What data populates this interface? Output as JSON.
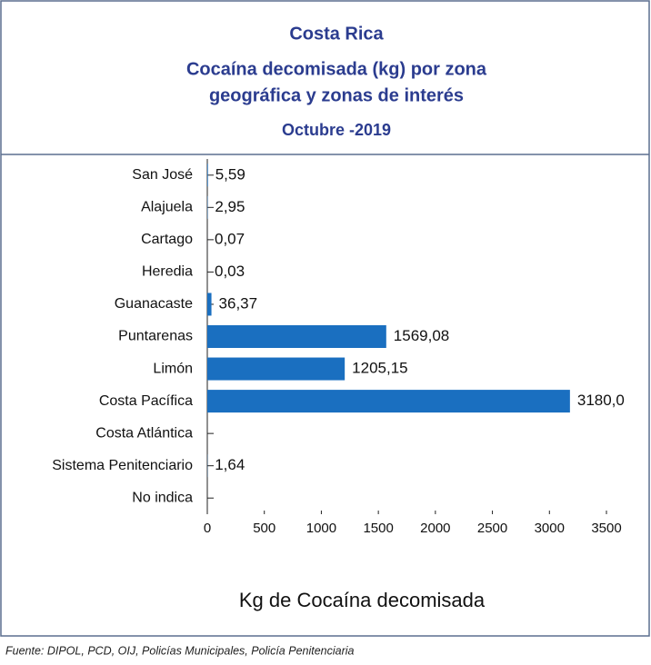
{
  "chart_data": {
    "type": "hbar",
    "title": "Costa Rica",
    "subtitle": [
      "Cocaína decomisada (kg) por zona",
      "geográfica y zonas de interés"
    ],
    "period": "Octubre -2019",
    "categories": [
      "San José",
      "Alajuela",
      "Cartago",
      "Heredia",
      "Guanacaste",
      "Puntarenas",
      "Limón",
      "Costa Pacífica",
      "Costa Atlántica",
      "Sistema Penitenciario",
      "No indica"
    ],
    "values": [
      5.59,
      2.95,
      0.07,
      0.03,
      36.37,
      1569.08,
      1205.15,
      3180.0,
      null,
      1.64,
      null
    ],
    "value_labels": [
      "5,59",
      "2,95",
      "0,07",
      "0,03",
      "36,37",
      "1569,08",
      "1205,15",
      "3180,0",
      null,
      "1,64",
      null
    ],
    "color": "#1a6fc0",
    "xlim": [
      0,
      3500
    ],
    "xticks": [
      0,
      500,
      1000,
      1500,
      2000,
      2500,
      3000,
      3500
    ],
    "xlabel": "Kg de Cocaína decomisada",
    "source": "Fuente: DIPOL, PCD, OIJ, Policías Municipales, Policía Penitenciaria"
  }
}
